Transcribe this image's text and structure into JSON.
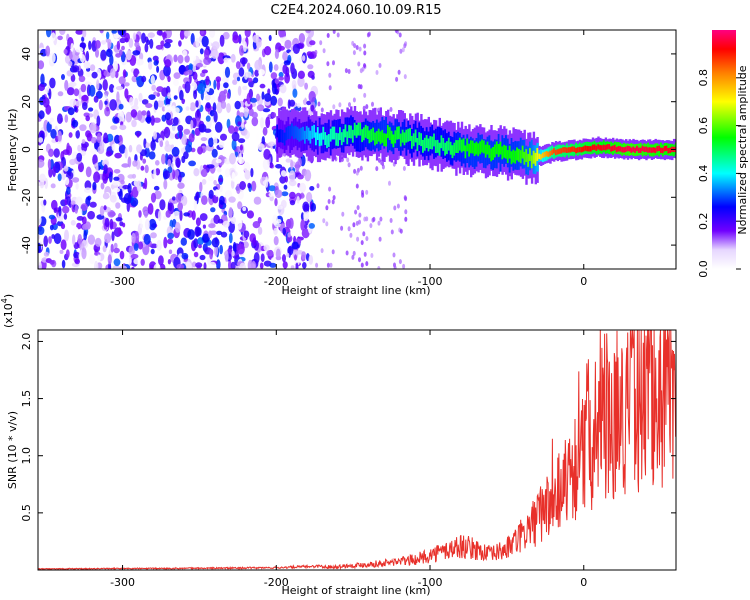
{
  "title": "C2E4.2024.060.10.09.R15",
  "chart_data": [
    {
      "type": "heatmap",
      "name": "spectrogram",
      "xlabel": "Height of straight line (km)",
      "ylabel": "Frequency (Hz)",
      "xlim": [
        -355,
        60
      ],
      "ylim": [
        -50,
        50
      ],
      "xticks": [
        -300,
        -200,
        -100,
        0
      ],
      "yticks": [
        -40,
        -20,
        0,
        20,
        40
      ],
      "xtick_labels": [
        "-300",
        "-200",
        "-100",
        "0"
      ],
      "ytick_labels": [
        "-40",
        "-20",
        "0",
        "20",
        "40"
      ],
      "colorbar": {
        "label": "Normalized spectral amplitude",
        "range": [
          0,
          1
        ],
        "ticks": [
          0.0,
          0.2,
          0.4,
          0.6,
          0.8
        ],
        "tick_labels": [
          "0.0",
          "0.2",
          "0.4",
          "0.6",
          "0.8"
        ],
        "colormap": [
          "#ffffff",
          "#7000ff",
          "#0000ff",
          "#00ffff",
          "#00ff00",
          "#ffff00",
          "#ff8000",
          "#ff0000",
          "#ff0080"
        ]
      },
      "noise_region": {
        "x": [
          -355,
          -175
        ],
        "ylim": [
          -50,
          50
        ]
      },
      "signal_ridge": {
        "x": [
          -200,
          -185,
          -170,
          -150,
          -130,
          -110,
          -90,
          -75,
          -60,
          -45,
          -35,
          -20,
          -5,
          10,
          30,
          60
        ],
        "y": [
          6,
          7,
          5,
          7,
          6,
          4,
          1,
          0,
          -1,
          -2,
          -4,
          -1,
          0,
          1,
          0,
          0
        ],
        "amplitude": [
          0.25,
          0.3,
          0.4,
          0.45,
          0.5,
          0.45,
          0.45,
          0.5,
          0.5,
          0.5,
          0.55,
          0.8,
          0.85,
          0.9,
          0.95,
          0.9
        ]
      }
    },
    {
      "type": "line",
      "name": "snr",
      "xlabel": "Height of straight line (km)",
      "ylabel": "SNR (10 * v/v)",
      "y_multiplier_label": "(x10",
      "y_multiplier_exp": "4",
      "xlim": [
        -355,
        60
      ],
      "ylim": [
        0,
        2.1
      ],
      "xticks": [
        -300,
        -200,
        -100,
        0
      ],
      "yticks": [
        0.5,
        1.0,
        1.5,
        2.0
      ],
      "xtick_labels": [
        "-300",
        "-200",
        "-100",
        "0"
      ],
      "ytick_labels": [
        "0.5",
        "1.0",
        "1.5",
        "2.0"
      ],
      "color": "#e8302a",
      "envelope_x": [
        -355,
        -250,
        -200,
        -160,
        -130,
        -110,
        -95,
        -80,
        -70,
        -60,
        -50,
        -40,
        -30,
        -20,
        -10,
        0,
        10,
        20,
        30,
        40,
        50,
        60
      ],
      "envelope_y": [
        0.01,
        0.015,
        0.02,
        0.04,
        0.08,
        0.12,
        0.2,
        0.28,
        0.24,
        0.18,
        0.25,
        0.4,
        0.6,
        0.85,
        1.1,
        1.35,
        1.6,
        1.75,
        1.88,
        1.95,
        2.0,
        1.98
      ]
    }
  ]
}
